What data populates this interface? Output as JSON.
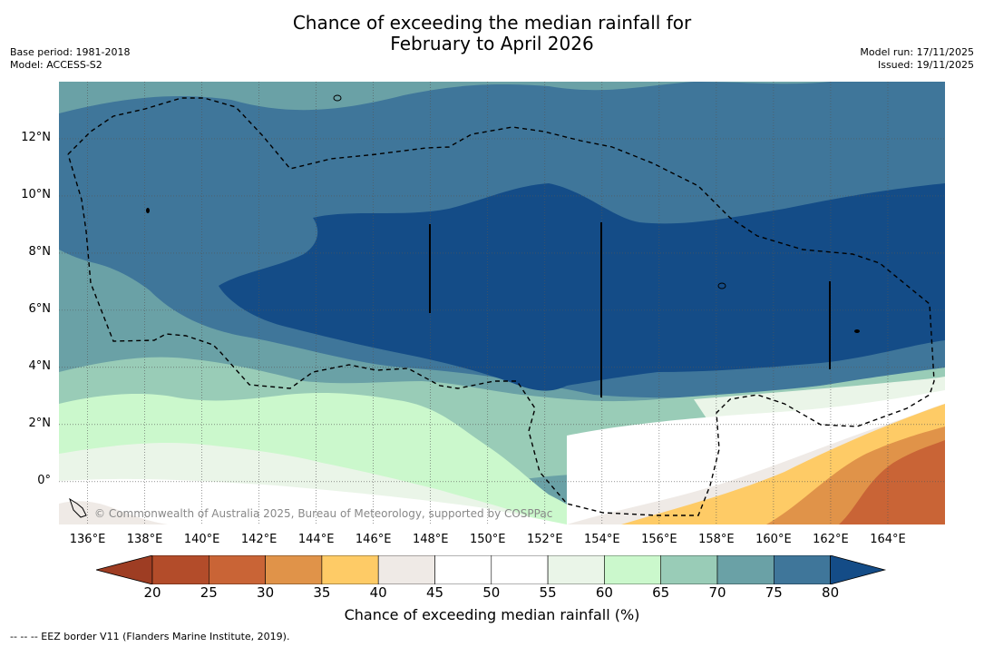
{
  "title": {
    "line1": "Chance of exceeding the median rainfall for",
    "line2": "February to April 2026"
  },
  "meta_left": {
    "base_period": "Base period: 1981-2018",
    "model": "Model: ACCESS-S2"
  },
  "meta_right": {
    "model_run": "Model run: 17/11/2025",
    "issued": "Issued: 19/11/2025"
  },
  "map": {
    "lat_ticks": [
      {
        "value": 12,
        "label": "12°N"
      },
      {
        "value": 10,
        "label": "10°N"
      },
      {
        "value": 8,
        "label": "8°N"
      },
      {
        "value": 6,
        "label": "6°N"
      },
      {
        "value": 4,
        "label": "4°N"
      },
      {
        "value": 2,
        "label": "2°N"
      },
      {
        "value": 0,
        "label": "0°"
      }
    ],
    "lon_ticks": [
      {
        "value": 136,
        "label": "136°E"
      },
      {
        "value": 138,
        "label": "138°E"
      },
      {
        "value": 140,
        "label": "140°E"
      },
      {
        "value": 142,
        "label": "142°E"
      },
      {
        "value": 144,
        "label": "144°E"
      },
      {
        "value": 146,
        "label": "146°E"
      },
      {
        "value": 148,
        "label": "148°E"
      },
      {
        "value": 150,
        "label": "150°E"
      },
      {
        "value": 152,
        "label": "152°E"
      },
      {
        "value": 154,
        "label": "154°E"
      },
      {
        "value": 156,
        "label": "156°E"
      },
      {
        "value": 158,
        "label": "158°E"
      },
      {
        "value": 160,
        "label": "160°E"
      },
      {
        "value": 162,
        "label": "162°E"
      },
      {
        "value": 164,
        "label": "164°E"
      }
    ],
    "lon_range": [
      135,
      166
    ],
    "lat_range": [
      -1.5,
      14
    ],
    "copyright": "© Commonwealth of Australia 2025, Bureau of Meteorology, supported by COSPPac",
    "colors": {
      "c20": "#9e3d23",
      "c25": "#b34c2a",
      "c30": "#c96436",
      "c35": "#e09349",
      "c40": "#fecb66",
      "c45": "#efeae6",
      "c50": "#ffffff",
      "c55": "#ffffff",
      "c60": "#eaf5e8",
      "c65": "#cbf8cc",
      "c70": "#99ccb7",
      "c75": "#6aa1a6",
      "c80": "#3f769a",
      "c85": "#144c87"
    }
  },
  "colorbar": {
    "ticks": [
      "20",
      "25",
      "30",
      "35",
      "40",
      "45",
      "50",
      "55",
      "60",
      "65",
      "70",
      "75",
      "80"
    ],
    "segments": [
      "#b34c2a",
      "#c96436",
      "#e09349",
      "#fecb66",
      "#efeae6",
      "#ffffff",
      "#ffffff",
      "#eaf5e8",
      "#cbf8cc",
      "#99ccb7",
      "#6aa1a6",
      "#3f769a"
    ],
    "under_color": "#9e3d23",
    "over_color": "#144c87",
    "label": "Chance of exceeding median rainfall (%)"
  },
  "footnote": "-- -- -- EEZ border V11 (Flanders Marine Institute, 2019)."
}
